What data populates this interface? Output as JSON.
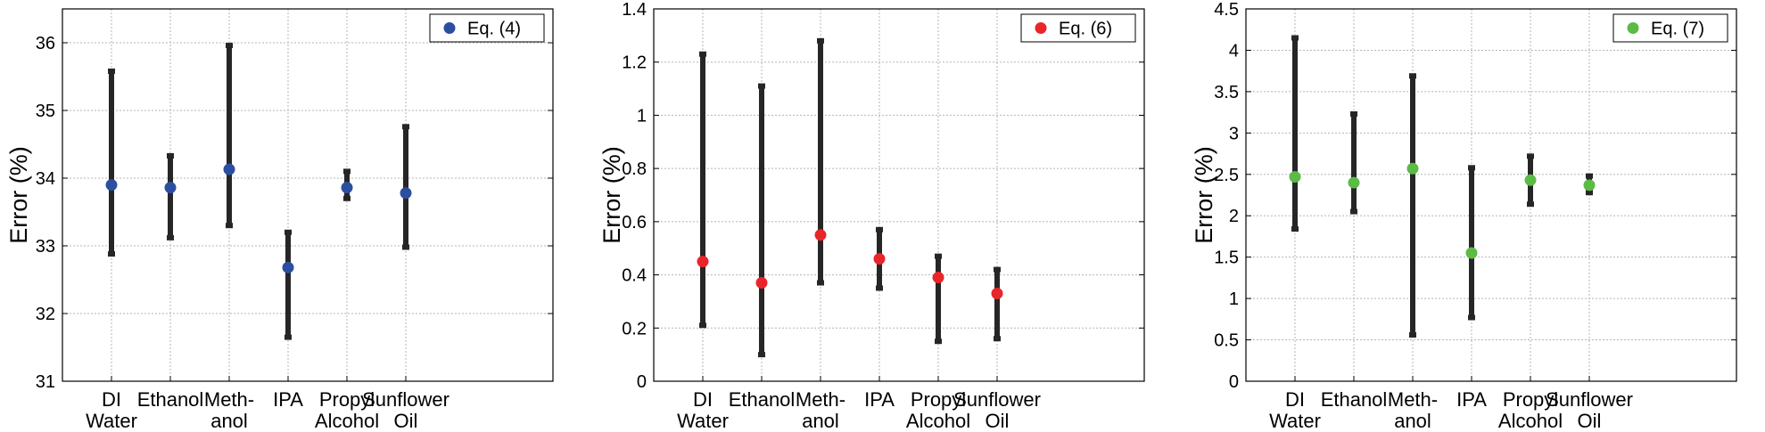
{
  "chart_data": [
    {
      "type": "scatter",
      "subtype": "errorbar",
      "title": "",
      "ylabel": "Error (%)",
      "xlabel": "",
      "categories": [
        [
          "DI",
          "Water"
        ],
        [
          "Ethanol"
        ],
        [
          "Meth-",
          "anol"
        ],
        [
          "IPA"
        ],
        [
          "Propyl",
          "Alcohol"
        ],
        [
          "Sunflower",
          "Oil"
        ]
      ],
      "ylim": [
        31,
        36.5
      ],
      "yticks": [
        31,
        32,
        33,
        34,
        35,
        36
      ],
      "ytick_labels": [
        "31",
        "32",
        "33",
        "34",
        "35",
        "36"
      ],
      "grid": true,
      "legend_position": "top-right",
      "series": [
        {
          "name": "Eq. (4)",
          "color": "#2b4fa0",
          "values": [
            33.9,
            33.86,
            34.13,
            32.68,
            33.86,
            33.78
          ],
          "lower": [
            32.88,
            33.12,
            33.3,
            31.65,
            33.7,
            32.98
          ],
          "upper": [
            35.58,
            34.33,
            35.96,
            33.2,
            34.1,
            34.76
          ]
        }
      ]
    },
    {
      "type": "scatter",
      "subtype": "errorbar",
      "title": "",
      "ylabel": "Error (%)",
      "xlabel": "",
      "categories": [
        [
          "DI",
          "Water"
        ],
        [
          "Ethanol"
        ],
        [
          "Meth-",
          "anol"
        ],
        [
          "IPA"
        ],
        [
          "Propyl",
          "Alcohol"
        ],
        [
          "Sunflower",
          "Oil"
        ]
      ],
      "ylim": [
        0,
        1.4
      ],
      "yticks": [
        0,
        0.2,
        0.4,
        0.6,
        0.8,
        1,
        1.2,
        1.4
      ],
      "ytick_labels": [
        "0",
        "0.2",
        "0.4",
        "0.6",
        "0.8",
        "1",
        "1.2",
        "1.4"
      ],
      "grid": true,
      "legend_position": "top-right",
      "series": [
        {
          "name": "Eq. (6)",
          "color": "#e8262a",
          "values": [
            0.45,
            0.37,
            0.55,
            0.46,
            0.39,
            0.33
          ],
          "lower": [
            0.21,
            0.1,
            0.37,
            0.35,
            0.15,
            0.16
          ],
          "upper": [
            1.23,
            1.11,
            1.28,
            0.57,
            0.47,
            0.42
          ]
        }
      ]
    },
    {
      "type": "scatter",
      "subtype": "errorbar",
      "title": "",
      "ylabel": "Error (%)",
      "xlabel": "",
      "categories": [
        [
          "DI",
          "Water"
        ],
        [
          "Ethanol"
        ],
        [
          "Meth-",
          "anol"
        ],
        [
          "IPA"
        ],
        [
          "Propyl",
          "Alcohol"
        ],
        [
          "Sunflower",
          "Oil"
        ]
      ],
      "ylim": [
        0,
        4.5
      ],
      "yticks": [
        0,
        0.5,
        1,
        1.5,
        2,
        2.5,
        3,
        3.5,
        4,
        4.5
      ],
      "ytick_labels": [
        "0",
        "0.5",
        "1",
        "1.5",
        "2",
        "2.5",
        "3",
        "3.5",
        "4",
        "4.5"
      ],
      "grid": true,
      "legend_position": "top-right",
      "series": [
        {
          "name": "Eq. (7)",
          "color": "#5bbb45",
          "values": [
            2.47,
            2.4,
            2.57,
            1.55,
            2.43,
            2.37
          ],
          "lower": [
            1.84,
            2.05,
            0.56,
            0.77,
            2.14,
            2.28
          ],
          "upper": [
            4.15,
            3.23,
            3.69,
            2.58,
            2.72,
            2.48
          ]
        }
      ]
    }
  ]
}
